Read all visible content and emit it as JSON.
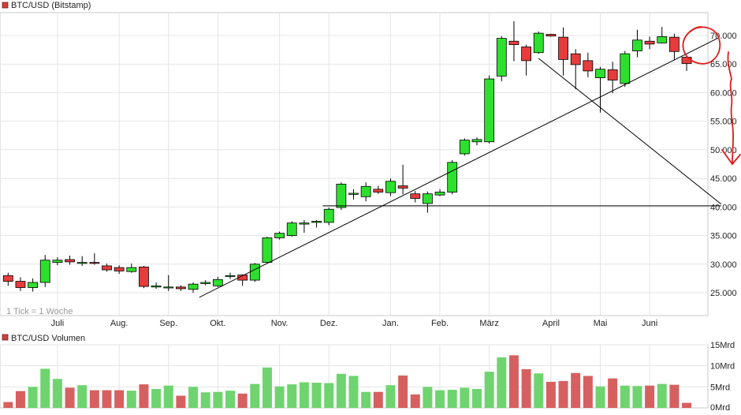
{
  "chart_data": [
    {
      "type": "candlestick",
      "title": "BTC/USD (Bitstamp)",
      "note": "1 Tick = 1 Woche",
      "ylim": [
        21000,
        74000
      ],
      "yticks": [
        {
          "v": 25000,
          "label": "25.000"
        },
        {
          "v": 30000,
          "label": "30.000"
        },
        {
          "v": 35000,
          "label": "35.000"
        },
        {
          "v": 40000,
          "label": "40.000"
        },
        {
          "v": 45000,
          "label": "45.000"
        },
        {
          "v": 50000,
          "label": "50.000"
        },
        {
          "v": 55000,
          "label": "55.000"
        },
        {
          "v": 60000,
          "label": "60.000"
        },
        {
          "v": 65000,
          "label": "65.000"
        },
        {
          "v": 70000,
          "label": "70.000"
        }
      ],
      "months": [
        {
          "label": "Juli",
          "week": 4
        },
        {
          "label": "Aug.",
          "week": 9
        },
        {
          "label": "Sep.",
          "week": 13
        },
        {
          "label": "Okt.",
          "week": 17
        },
        {
          "label": "Nov.",
          "week": 22
        },
        {
          "label": "Dez.",
          "week": 26
        },
        {
          "label": "Jan.",
          "week": 31
        },
        {
          "label": "Feb.",
          "week": 35
        },
        {
          "label": "März",
          "week": 39
        },
        {
          "label": "April",
          "week": 44
        },
        {
          "label": "Mai",
          "week": 48
        },
        {
          "label": "Juni",
          "week": 52
        }
      ],
      "candles": [
        [
          28000,
          27000,
          26200,
          28500
        ],
        [
          27000,
          25900,
          25300,
          27700
        ],
        [
          25900,
          26800,
          25200,
          27500
        ],
        [
          26800,
          30700,
          26000,
          31600
        ],
        [
          30300,
          30700,
          29800,
          31200
        ],
        [
          30800,
          30400,
          29900,
          31500
        ],
        [
          30200,
          30300,
          29700,
          31400
        ],
        [
          30300,
          30200,
          29900,
          31900
        ],
        [
          29700,
          29000,
          28700,
          30100
        ],
        [
          29400,
          28800,
          28300,
          29800
        ],
        [
          28700,
          29400,
          28500,
          30100
        ],
        [
          29500,
          26100,
          25800,
          29700
        ],
        [
          26000,
          26200,
          25700,
          26800
        ],
        [
          26000,
          26000,
          25300,
          28100
        ],
        [
          26000,
          25700,
          25300,
          26300
        ],
        [
          25600,
          26500,
          25000,
          26800
        ],
        [
          26600,
          26800,
          26300,
          27200
        ],
        [
          26200,
          27300,
          26000,
          27800
        ],
        [
          27900,
          28000,
          27400,
          28500
        ],
        [
          28100,
          27200,
          26200,
          28200
        ],
        [
          27200,
          30000,
          26900,
          30200
        ],
        [
          30300,
          34600,
          30100,
          34800
        ],
        [
          34600,
          35400,
          34300,
          35700
        ],
        [
          35000,
          37200,
          34800,
          37500
        ],
        [
          37000,
          37200,
          35500,
          37700
        ],
        [
          37300,
          37500,
          36400,
          37700
        ],
        [
          37300,
          39600,
          36800,
          39900
        ],
        [
          39900,
          44000,
          39500,
          44300
        ],
        [
          42200,
          42400,
          41300,
          43100
        ],
        [
          41800,
          43600,
          41000,
          44300
        ],
        [
          43100,
          42600,
          42300,
          43700
        ],
        [
          42500,
          44500,
          41900,
          45000
        ],
        [
          43700,
          43300,
          42200,
          47400
        ],
        [
          42300,
          41500,
          40800,
          42800
        ],
        [
          40600,
          42300,
          39000,
          42700
        ],
        [
          42100,
          42600,
          41900,
          43100
        ],
        [
          42600,
          47800,
          42200,
          48200
        ],
        [
          49300,
          51700,
          49000,
          52000
        ],
        [
          51400,
          51800,
          50800,
          52200
        ],
        [
          51400,
          62400,
          51100,
          63000
        ],
        [
          62900,
          69500,
          62000,
          69900
        ],
        [
          69000,
          68400,
          65500,
          72500
        ],
        [
          68000,
          65600,
          63000,
          68400
        ],
        [
          67000,
          70400,
          66800,
          70700
        ],
        [
          70200,
          69900,
          69800,
          70300
        ],
        [
          69700,
          65800,
          63000,
          71400
        ],
        [
          66800,
          64900,
          60600,
          67600
        ],
        [
          65600,
          63800,
          62700,
          67000
        ],
        [
          62600,
          64100,
          56500,
          64500
        ],
        [
          64000,
          62200,
          59900,
          65400
        ],
        [
          61600,
          66800,
          61000,
          67300
        ],
        [
          67300,
          69200,
          66200,
          71000
        ],
        [
          69000,
          68500,
          67600,
          69800
        ],
        [
          68700,
          69800,
          68600,
          71500
        ],
        [
          69700,
          67200,
          65700,
          70300
        ],
        [
          66200,
          65100,
          63800,
          66500
        ]
      ],
      "lines": [
        {
          "w1": 15.5,
          "v1": 24200,
          "w2": 57.5,
          "v2": 69500
        },
        {
          "w1": 43,
          "v1": 66000,
          "w2": 57.8,
          "v2": 40500
        },
        {
          "w1": 25.5,
          "v1": 40200,
          "w2": 57.8,
          "v2": 40200
        }
      ]
    },
    {
      "type": "bar",
      "title": "BTC/USD Volumen",
      "ylim": [
        0,
        15
      ],
      "yticks": [
        {
          "v": 0,
          "label": "0Mrd"
        },
        {
          "v": 5,
          "label": "5Mrd"
        },
        {
          "v": 10,
          "label": "10Mrd"
        },
        {
          "v": 15,
          "label": "15Mrd"
        }
      ],
      "values": [
        1.4,
        4.0,
        5.0,
        9.3,
        6.9,
        4.8,
        5.4,
        4.2,
        4.2,
        4.2,
        4.1,
        5.6,
        4.5,
        5.3,
        2.9,
        5.0,
        3.7,
        3.8,
        4.1,
        3.4,
        5.7,
        9.6,
        5.1,
        5.6,
        6.1,
        6.0,
        5.9,
        8.1,
        7.6,
        3.8,
        3.8,
        5.4,
        7.7,
        3.2,
        5.0,
        4.2,
        4.3,
        4.8,
        4.5,
        8.6,
        12.0,
        12.5,
        9.2,
        8.2,
        6.2,
        6.4,
        8.3,
        7.6,
        5.1,
        7.0,
        5.3,
        5.2,
        5.3,
        5.7,
        5.5,
        1.2
      ]
    }
  ],
  "colors": {
    "up": "#2ee02e",
    "down": "#e63c3c",
    "vol_up": "#6fd46f",
    "vol_down": "#d66060",
    "grid": "#e4e4e4",
    "trend": "#000000",
    "annotation": "#e01b1b"
  }
}
